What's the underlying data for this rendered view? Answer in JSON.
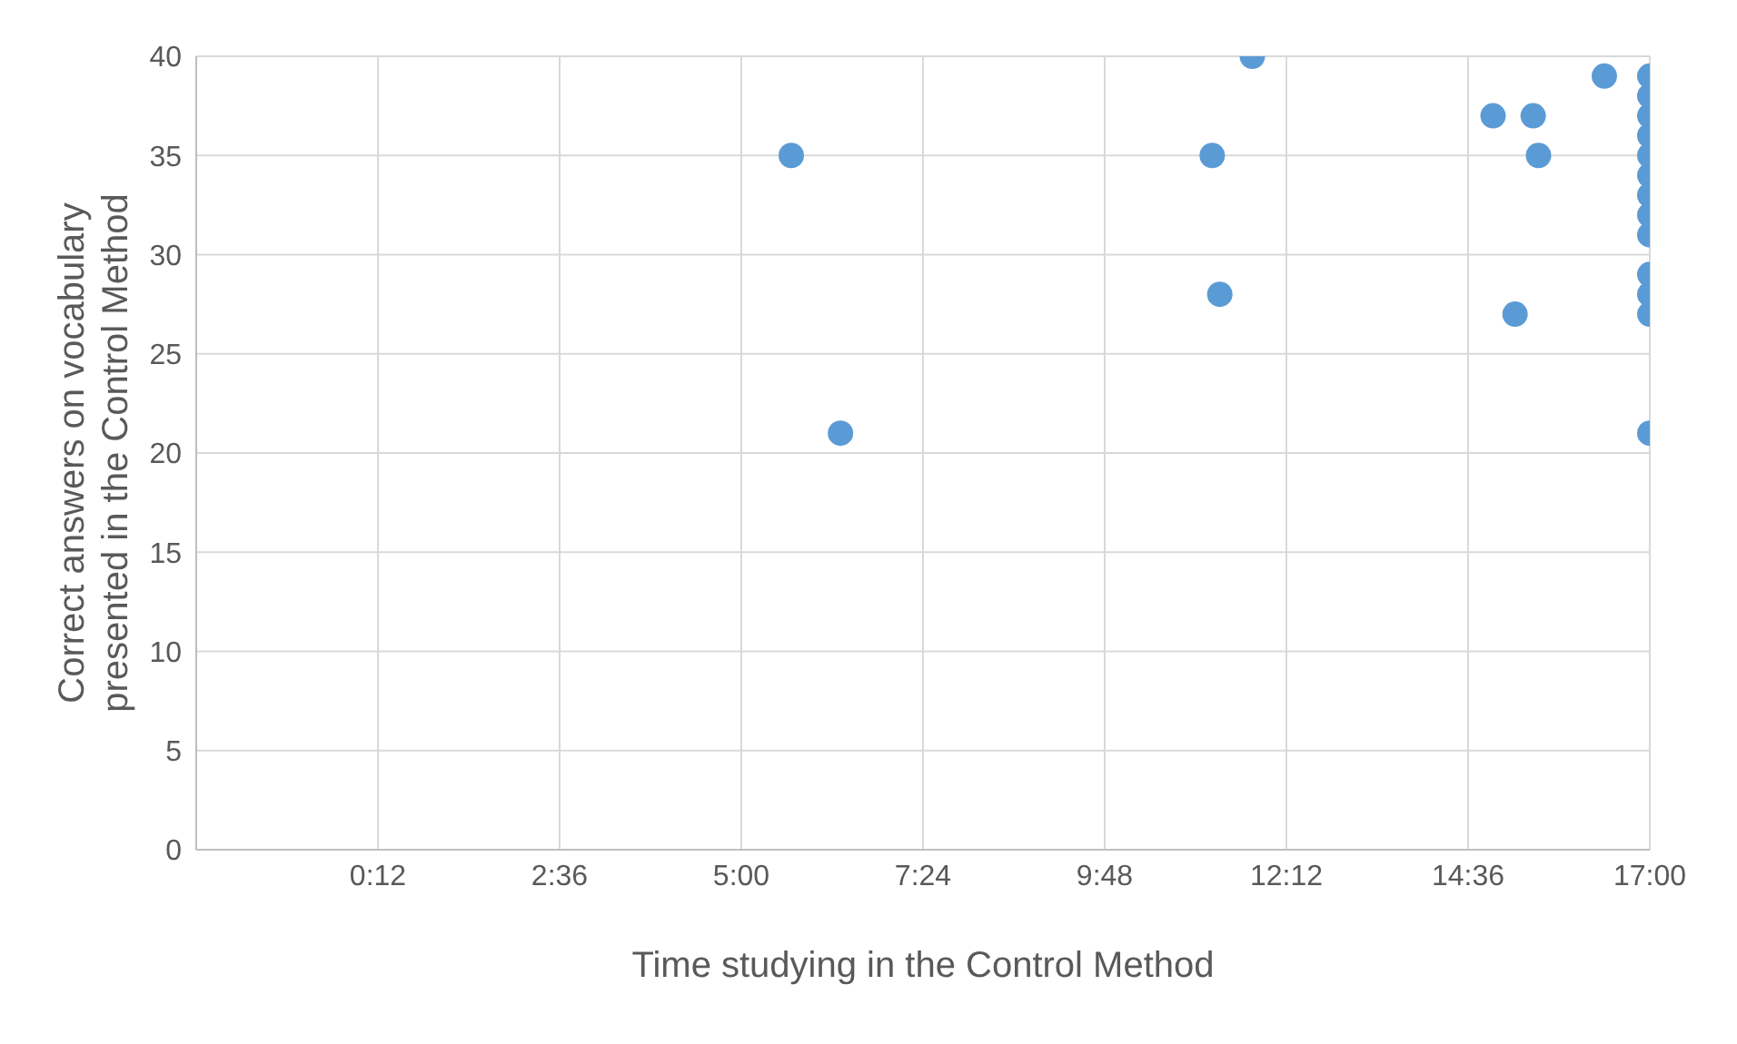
{
  "chart_data": {
    "type": "scatter",
    "xlabel": "Time studying in the Control Method",
    "ylabel": "Correct answers on vocabulary presented in the Control Method",
    "xlim": [
      -2.2,
      17
    ],
    "xticks": [
      {
        "value": 0.2,
        "label": "0:12"
      },
      {
        "value": 2.6,
        "label": "2:36"
      },
      {
        "value": 5,
        "label": "5:00"
      },
      {
        "value": 7.4,
        "label": "7:24"
      },
      {
        "value": 9.8,
        "label": "9:48"
      },
      {
        "value": 12.2,
        "label": "12:12"
      },
      {
        "value": 14.6,
        "label": "14:36"
      },
      {
        "value": 17,
        "label": "17:00"
      }
    ],
    "ylim": [
      0,
      40
    ],
    "yticks": [
      0,
      5,
      10,
      15,
      20,
      25,
      30,
      35,
      40
    ],
    "grid": true,
    "legend": false,
    "marker": "circle",
    "series": [
      {
        "color": "#5b9bd5",
        "x": [
          5.66,
          6.31,
          11.22,
          11.32,
          11.75,
          14.93,
          15.46,
          15.53,
          15.22,
          16.4,
          17,
          17,
          17,
          17,
          17,
          17,
          17,
          17,
          17,
          17,
          17,
          17,
          17
        ],
        "values": [
          35,
          21,
          35,
          28,
          40,
          37,
          37,
          35,
          27,
          39,
          39,
          38,
          37,
          36,
          35,
          34,
          33,
          32,
          31,
          29,
          28,
          27,
          21
        ]
      }
    ]
  }
}
